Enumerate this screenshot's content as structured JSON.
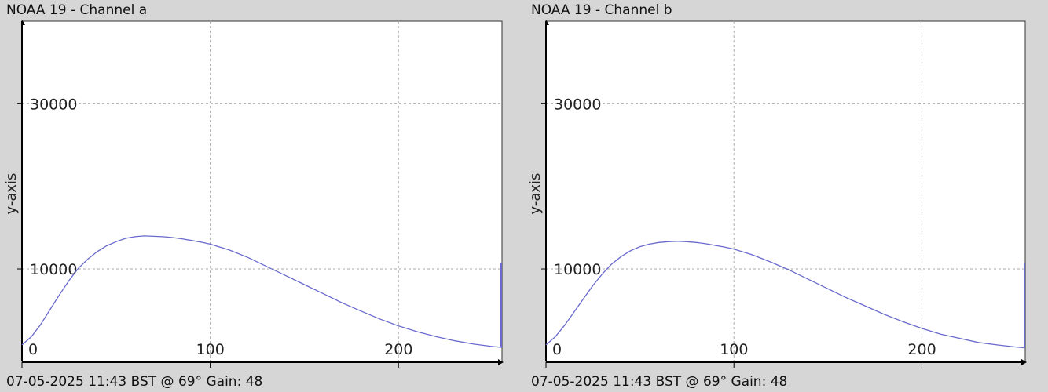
{
  "panels": [
    {
      "title": "NOAA 19 - Channel a",
      "footer": "07-05-2025 11:43 BST @ 69° Gain: 48"
    },
    {
      "title": "NOAA 19 - Channel b",
      "footer": "07-05-2025 11:43 BST @ 69° Gain: 48"
    }
  ],
  "colors": {
    "line": "#6a6acd",
    "grid": "#aaaaaa",
    "plot_bg": "#ffffff",
    "background": "#d6d6d6"
  },
  "chart_data": [
    {
      "type": "line",
      "title": "NOAA 19 - Channel a",
      "ylabel": "y-axis",
      "xlim": [
        0,
        255
      ],
      "ylim": [
        -1200,
        40000
      ],
      "xticks": [
        0,
        100,
        200
      ],
      "yticks": [
        10000,
        30000
      ],
      "grid": true,
      "series": [
        {
          "x": [
            0,
            5,
            10,
            15,
            20,
            25,
            30,
            35,
            40,
            45,
            50,
            55,
            60,
            65,
            70,
            75,
            80,
            85,
            90,
            95,
            100,
            110,
            120,
            130,
            140,
            150,
            160,
            170,
            180,
            190,
            200,
            210,
            220,
            230,
            240,
            250,
            255
          ],
          "values": [
            800,
            1800,
            3300,
            5100,
            6900,
            8600,
            10100,
            11200,
            12100,
            12800,
            13300,
            13700,
            13900,
            14000,
            13950,
            13900,
            13800,
            13650,
            13450,
            13250,
            13000,
            12300,
            11400,
            10300,
            9200,
            8100,
            7000,
            5900,
            4900,
            3950,
            3100,
            2400,
            1800,
            1300,
            900,
            600,
            500
          ],
          "end_spike": 10700
        }
      ]
    },
    {
      "type": "line",
      "title": "NOAA 19 - Channel b",
      "ylabel": "y-axis",
      "xlim": [
        0,
        255
      ],
      "ylim": [
        -1200,
        40000
      ],
      "xticks": [
        0,
        100,
        200
      ],
      "yticks": [
        10000,
        30000
      ],
      "grid": true,
      "series": [
        {
          "x": [
            0,
            5,
            10,
            15,
            20,
            25,
            30,
            35,
            40,
            45,
            50,
            55,
            60,
            65,
            70,
            75,
            80,
            85,
            90,
            95,
            100,
            110,
            120,
            130,
            140,
            150,
            160,
            170,
            180,
            190,
            200,
            210,
            220,
            230,
            240,
            250,
            255
          ],
          "values": [
            800,
            1800,
            3200,
            4800,
            6400,
            8000,
            9400,
            10600,
            11500,
            12200,
            12700,
            13000,
            13200,
            13300,
            13350,
            13300,
            13200,
            13050,
            12850,
            12650,
            12400,
            11700,
            10800,
            9800,
            8700,
            7600,
            6500,
            5500,
            4500,
            3600,
            2800,
            2100,
            1600,
            1100,
            800,
            550,
            450
          ],
          "end_spike": 10700
        }
      ]
    }
  ]
}
